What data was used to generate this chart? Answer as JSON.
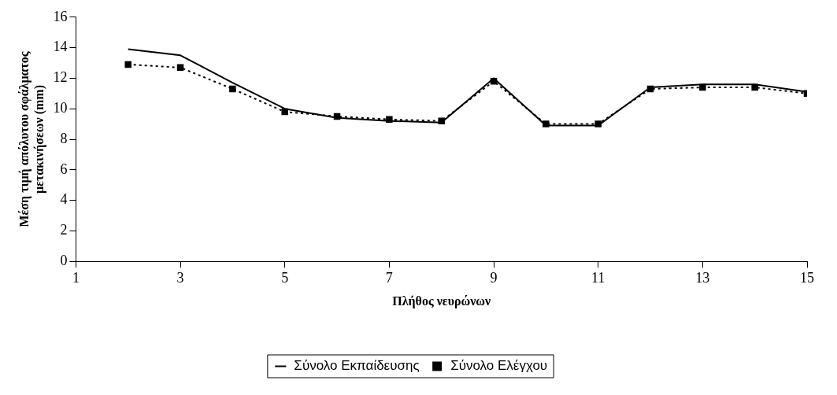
{
  "chart_data": {
    "type": "line",
    "xlabel": "Πλήθος νευρώνων",
    "ylabel": "Μέση τιμή απόλυτου σφάλματος μετακινήσεων (mm)",
    "x": [
      2,
      3,
      4,
      5,
      6,
      7,
      8,
      9,
      10,
      11,
      12,
      13,
      14,
      15
    ],
    "series": [
      {
        "name": "Σύνολο Εκπαίδευσης",
        "color": "#000000",
        "line_style": "solid",
        "marker": "none",
        "values": [
          13.9,
          13.5,
          11.7,
          10.0,
          9.4,
          9.2,
          9.1,
          12.0,
          8.9,
          8.9,
          11.4,
          11.6,
          11.6,
          11.1
        ]
      },
      {
        "name": "Σύνολο Ελέγχου",
        "color": "#000000",
        "line_style": "dotted",
        "marker": "square",
        "values": [
          12.9,
          12.7,
          11.3,
          9.8,
          9.5,
          9.3,
          9.2,
          11.8,
          9.0,
          9.0,
          11.3,
          11.4,
          11.4,
          11.0
        ]
      }
    ],
    "xlim": [
      1,
      15
    ],
    "xticks": [
      1,
      3,
      5,
      7,
      9,
      11,
      13,
      15
    ],
    "ylim": [
      0,
      16
    ],
    "yticks": [
      0,
      2,
      4,
      6,
      8,
      10,
      12,
      14,
      16
    ],
    "grid": false,
    "legend": "bottom"
  }
}
